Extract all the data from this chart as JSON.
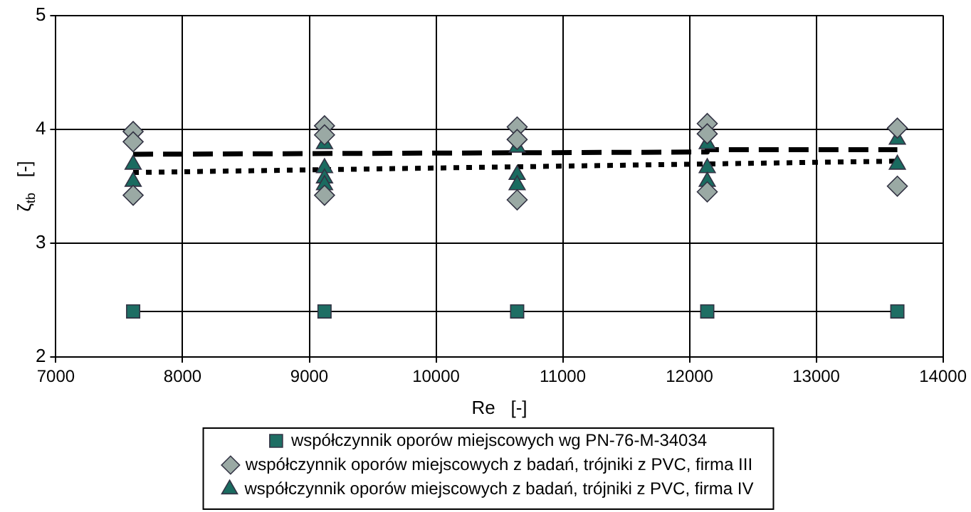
{
  "chart_data": {
    "type": "scatter",
    "xlabel": "Re   [-]",
    "ylabel": "ζ$_{tb}$   [-]",
    "xlim": [
      7000,
      14000
    ],
    "xticks": [
      7000,
      8000,
      9000,
      10000,
      11000,
      12000,
      13000,
      14000
    ],
    "ylim": [
      2,
      5
    ],
    "yticks": [
      2,
      3,
      4,
      5
    ],
    "grid": true,
    "legend": "bottom",
    "series": [
      {
        "name": "współczynnik oporów miejscowych wg PN-76-M-34034",
        "type": "line",
        "marker": "square",
        "color": "#1e6e64",
        "x": [
          7610,
          9120,
          10640,
          12140,
          13640
        ],
        "values": [
          2.4,
          2.4,
          2.4,
          2.4,
          2.4
        ]
      },
      {
        "name": "współczynnik oporów miejscowych z badań, trójniki z PVC, firma III",
        "marker": "diamond",
        "color": "#9aa9a4",
        "x": [
          7610,
          7610,
          7610,
          9120,
          9120,
          9120,
          10640,
          10640,
          10640,
          12140,
          12140,
          12140,
          13640,
          13640
        ],
        "values": [
          3.98,
          3.89,
          3.42,
          4.03,
          3.95,
          3.42,
          4.02,
          3.91,
          3.38,
          4.05,
          3.96,
          3.45,
          4.01,
          3.5
        ]
      },
      {
        "name": "współczynnik oporów miejscowych z badań, trójniki z PVC, firma IV",
        "marker": "triangle",
        "color": "#1a6b60",
        "x": [
          7610,
          7610,
          9120,
          9120,
          9120,
          9120,
          10640,
          10640,
          10640,
          12140,
          12140,
          12140,
          13640,
          13640
        ],
        "values": [
          3.69,
          3.54,
          3.87,
          3.66,
          3.57,
          3.51,
          3.84,
          3.6,
          3.51,
          3.87,
          3.66,
          3.54,
          3.91,
          3.69
        ]
      },
      {
        "type": "line",
        "marker": "none",
        "line_style": "dashed",
        "color": "#000000",
        "x": [
          7610,
          12140,
          12140,
          13640
        ],
        "values": [
          3.78,
          3.8,
          3.82,
          3.82
        ]
      },
      {
        "type": "line",
        "marker": "none",
        "line_style": "dotted",
        "color": "#000000",
        "x": [
          7610,
          13640
        ],
        "values": [
          3.62,
          3.72
        ]
      }
    ]
  }
}
